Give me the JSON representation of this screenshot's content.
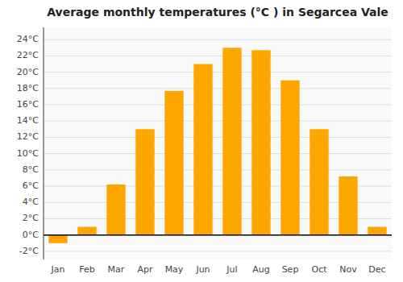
{
  "chart_data": {
    "type": "bar",
    "title": "Average monthly temperatures (°C ) in Segarcea Vale",
    "categories": [
      "Jan",
      "Feb",
      "Mar",
      "Apr",
      "May",
      "Jun",
      "Jul",
      "Aug",
      "Sep",
      "Oct",
      "Nov",
      "Dec"
    ],
    "values": [
      -1.0,
      1.0,
      6.2,
      13.0,
      17.7,
      21.0,
      23.0,
      22.7,
      19.0,
      13.0,
      7.2,
      1.0
    ],
    "color": "#FFA500",
    "ylim": [
      -3,
      25.5
    ],
    "yticks": [
      {
        "value": -2,
        "label": "-2°C"
      },
      {
        "value": 0,
        "label": "0°C"
      },
      {
        "value": 2,
        "label": "2°C"
      },
      {
        "value": 4,
        "label": "4°C"
      },
      {
        "value": 6,
        "label": "6°C"
      },
      {
        "value": 8,
        "label": "8°C"
      },
      {
        "value": 10,
        "label": "10°C"
      },
      {
        "value": 12,
        "label": "12°C"
      },
      {
        "value": 14,
        "label": "14°C"
      },
      {
        "value": 16,
        "label": "16°C"
      },
      {
        "value": 18,
        "label": "18°C"
      },
      {
        "value": 20,
        "label": "20°C"
      },
      {
        "value": 22,
        "label": "22°C"
      },
      {
        "value": 24,
        "label": "24°C"
      }
    ],
    "grid": true
  }
}
